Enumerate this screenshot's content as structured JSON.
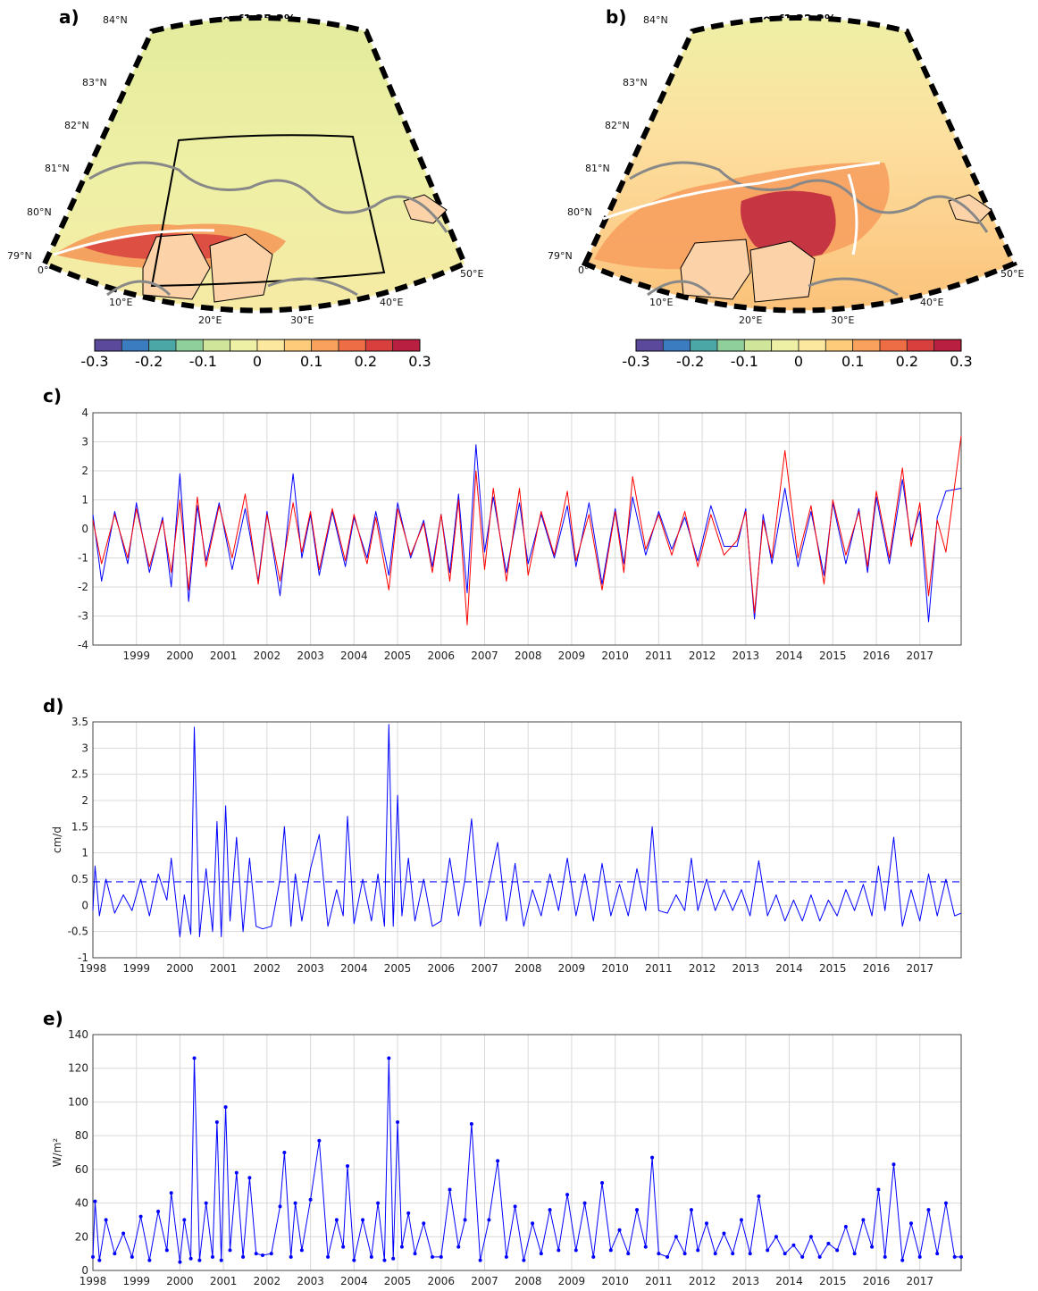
{
  "panel_a": {
    "label": "a)",
    "title": "eof1 35.2%",
    "lat_labels": [
      "79°N",
      "80°N",
      "81°N",
      "82°N",
      "83°N",
      "84°N"
    ],
    "lon_labels": [
      "0°",
      "10°E",
      "20°E",
      "30°E",
      "40°E",
      "50°E"
    ]
  },
  "panel_b": {
    "label": "b)",
    "title": "eof1 32.2%",
    "lat_labels": [
      "79°N",
      "80°N",
      "81°N",
      "82°N",
      "83°N",
      "84°N"
    ],
    "lon_labels": [
      "0°",
      "10°E",
      "20°E",
      "30°E",
      "40°E",
      "50°E"
    ]
  },
  "colorbar": {
    "ticks": [
      "-0.3",
      "-0.2",
      "-0.1",
      "0",
      "0.1",
      "0.2",
      "0.3"
    ],
    "colors": [
      "#5b4a9b",
      "#3a7cbf",
      "#4aa7a5",
      "#8fcf9b",
      "#cfe59a",
      "#eef0a6",
      "#fde8a0",
      "#fdcc7a",
      "#f9a25c",
      "#ee6d45",
      "#d8403e",
      "#b81f40"
    ]
  },
  "colors": {
    "blue": "#0000ff",
    "red": "#ff0000"
  },
  "years": [
    "1998",
    "1999",
    "2000",
    "2001",
    "2002",
    "2003",
    "2004",
    "2005",
    "2006",
    "2007",
    "2008",
    "2009",
    "2010",
    "2011",
    "2012",
    "2013",
    "2014",
    "2015",
    "2016",
    "2017"
  ],
  "chart_data": [
    {
      "id": "c",
      "label": "c)",
      "type": "line",
      "ylabel": "",
      "ylim": [
        -4,
        4
      ],
      "yticks": [
        -4,
        -3,
        -2,
        -1,
        0,
        1,
        2,
        3,
        4
      ],
      "xlim": [
        1998,
        2017.95
      ],
      "xtick_labels": [
        "1999",
        "2000",
        "2001",
        "2002",
        "2003",
        "2004",
        "2005",
        "2006",
        "2007",
        "2008",
        "2009",
        "2010",
        "2011",
        "2012",
        "2013",
        "2014",
        "2015",
        "2016",
        "2017"
      ],
      "grid": true,
      "series": [
        {
          "color": "#0000ff",
          "x": [
            1998.0,
            1998.2,
            1998.5,
            1998.8,
            1999.0,
            1999.3,
            1999.6,
            1999.8,
            2000.0,
            2000.2,
            2000.4,
            2000.6,
            2000.9,
            2001.2,
            2001.5,
            2001.8,
            2002.0,
            2002.3,
            2002.6,
            2002.8,
            2003.0,
            2003.2,
            2003.5,
            2003.8,
            2004.0,
            2004.3,
            2004.5,
            2004.8,
            2005.0,
            2005.3,
            2005.6,
            2005.8,
            2006.0,
            2006.2,
            2006.4,
            2006.6,
            2006.8,
            2007.0,
            2007.2,
            2007.5,
            2007.8,
            2008.0,
            2008.3,
            2008.6,
            2008.9,
            2009.1,
            2009.4,
            2009.7,
            2010.0,
            2010.2,
            2010.4,
            2010.7,
            2011.0,
            2011.3,
            2011.6,
            2011.9,
            2012.2,
            2012.5,
            2012.8,
            2013.0,
            2013.2,
            2013.4,
            2013.6,
            2013.9,
            2014.2,
            2014.5,
            2014.8,
            2015.0,
            2015.3,
            2015.6,
            2015.8,
            2016.0,
            2016.3,
            2016.6,
            2016.8,
            2017.0,
            2017.2,
            2017.4,
            2017.6,
            2017.95
          ],
          "y": [
            0.5,
            -1.8,
            0.6,
            -1.2,
            0.9,
            -1.5,
            0.4,
            -2.0,
            1.9,
            -2.5,
            0.8,
            -1.1,
            0.9,
            -1.4,
            0.7,
            -1.8,
            0.6,
            -2.3,
            1.9,
            -1.0,
            0.5,
            -1.6,
            0.6,
            -1.3,
            0.4,
            -1.0,
            0.6,
            -1.6,
            0.9,
            -1.0,
            0.3,
            -1.3,
            0.5,
            -1.5,
            1.2,
            -2.2,
            2.9,
            -0.8,
            1.1,
            -1.5,
            0.9,
            -1.2,
            0.5,
            -1.0,
            0.8,
            -1.3,
            0.9,
            -1.9,
            0.7,
            -1.2,
            1.1,
            -0.9,
            0.6,
            -0.7,
            0.4,
            -1.1,
            0.8,
            -0.6,
            -0.6,
            0.7,
            -3.1,
            0.5,
            -1.2,
            1.4,
            -1.3,
            0.6,
            -1.6,
            0.9,
            -1.2,
            0.7,
            -1.5,
            1.1,
            -1.2,
            1.7,
            -0.4,
            0.6,
            -3.2,
            0.4,
            1.3,
            1.4
          ]
        },
        {
          "color": "#ff0000",
          "x": [
            1998.0,
            1998.2,
            1998.5,
            1998.8,
            1999.0,
            1999.3,
            1999.6,
            1999.8,
            2000.0,
            2000.2,
            2000.4,
            2000.6,
            2000.9,
            2001.2,
            2001.5,
            2001.8,
            2002.0,
            2002.3,
            2002.6,
            2002.8,
            2003.0,
            2003.2,
            2003.5,
            2003.8,
            2004.0,
            2004.3,
            2004.5,
            2004.8,
            2005.0,
            2005.3,
            2005.6,
            2005.8,
            2006.0,
            2006.2,
            2006.4,
            2006.6,
            2006.8,
            2007.0,
            2007.2,
            2007.5,
            2007.8,
            2008.0,
            2008.3,
            2008.6,
            2008.9,
            2009.1,
            2009.4,
            2009.7,
            2010.0,
            2010.2,
            2010.4,
            2010.7,
            2011.0,
            2011.3,
            2011.6,
            2011.9,
            2012.2,
            2012.5,
            2012.8,
            2013.0,
            2013.2,
            2013.4,
            2013.6,
            2013.9,
            2014.2,
            2014.5,
            2014.8,
            2015.0,
            2015.3,
            2015.6,
            2015.8,
            2016.0,
            2016.3,
            2016.6,
            2016.8,
            2017.0,
            2017.2,
            2017.4,
            2017.6,
            2017.95
          ],
          "y": [
            0.3,
            -1.2,
            0.5,
            -1.0,
            0.7,
            -1.3,
            0.3,
            -1.5,
            1.0,
            -2.1,
            1.1,
            -1.3,
            0.8,
            -1.0,
            1.2,
            -1.9,
            0.5,
            -1.8,
            0.9,
            -0.8,
            0.6,
            -1.4,
            0.7,
            -1.1,
            0.5,
            -1.2,
            0.4,
            -2.1,
            0.7,
            -0.9,
            0.2,
            -1.5,
            0.5,
            -1.8,
            1.0,
            -3.3,
            2.0,
            -1.4,
            1.4,
            -1.8,
            1.4,
            -1.6,
            0.6,
            -0.9,
            1.3,
            -1.1,
            0.5,
            -2.1,
            0.6,
            -1.5,
            1.8,
            -0.7,
            0.5,
            -0.9,
            0.6,
            -1.3,
            0.5,
            -0.9,
            -0.4,
            0.6,
            -2.9,
            0.3,
            -1.0,
            2.7,
            -1.0,
            0.8,
            -1.9,
            1.0,
            -0.9,
            0.6,
            -1.3,
            1.3,
            -1.0,
            2.1,
            -0.6,
            0.9,
            -2.3,
            0.3,
            -0.8,
            3.2
          ]
        }
      ]
    },
    {
      "id": "d",
      "label": "d)",
      "type": "line",
      "ylabel": "cm/d",
      "ylim": [
        -1,
        3.5
      ],
      "yticks": [
        -1,
        -0.5,
        0,
        0.5,
        1,
        1.5,
        2,
        2.5,
        3,
        3.5
      ],
      "xlim": [
        1998,
        2017.95
      ],
      "xtick_labels": [
        "1998",
        "1999",
        "2000",
        "2001",
        "2002",
        "2003",
        "2004",
        "2005",
        "2006",
        "2007",
        "2008",
        "2009",
        "2010",
        "2011",
        "2012",
        "2013",
        "2014",
        "2015",
        "2016",
        "2017"
      ],
      "grid": true,
      "threshold": 0.45,
      "series": [
        {
          "color": "#0000ff",
          "x": [
            1998.0,
            1998.05,
            1998.15,
            1998.3,
            1998.5,
            1998.7,
            1998.9,
            1999.1,
            1999.3,
            1999.5,
            1999.7,
            1999.8,
            2000.0,
            2000.1,
            2000.25,
            2000.33,
            2000.45,
            2000.6,
            2000.75,
            2000.85,
            2000.95,
            2001.05,
            2001.15,
            2001.3,
            2001.45,
            2001.6,
            2001.75,
            2001.9,
            2002.1,
            2002.3,
            2002.4,
            2002.55,
            2002.65,
            2002.8,
            2003.0,
            2003.2,
            2003.4,
            2003.6,
            2003.75,
            2003.85,
            2004.0,
            2004.2,
            2004.4,
            2004.55,
            2004.7,
            2004.8,
            2004.9,
            2005.0,
            2005.1,
            2005.25,
            2005.4,
            2005.6,
            2005.8,
            2006.0,
            2006.2,
            2006.4,
            2006.55,
            2006.7,
            2006.9,
            2007.1,
            2007.3,
            2007.5,
            2007.7,
            2007.9,
            2008.1,
            2008.3,
            2008.5,
            2008.7,
            2008.9,
            2009.1,
            2009.3,
            2009.5,
            2009.7,
            2009.9,
            2010.1,
            2010.3,
            2010.5,
            2010.7,
            2010.85,
            2011.0,
            2011.2,
            2011.4,
            2011.6,
            2011.75,
            2011.9,
            2012.1,
            2012.3,
            2012.5,
            2012.7,
            2012.9,
            2013.1,
            2013.3,
            2013.5,
            2013.7,
            2013.9,
            2014.1,
            2014.3,
            2014.5,
            2014.7,
            2014.9,
            2015.1,
            2015.3,
            2015.5,
            2015.7,
            2015.9,
            2016.05,
            2016.2,
            2016.4,
            2016.6,
            2016.8,
            2017.0,
            2017.2,
            2017.4,
            2017.6,
            2017.8,
            2017.95
          ],
          "y": [
            -0.1,
            0.75,
            -0.2,
            0.5,
            -0.15,
            0.2,
            -0.1,
            0.5,
            -0.2,
            0.6,
            0.1,
            0.9,
            -0.6,
            0.2,
            -0.55,
            3.4,
            -0.6,
            0.7,
            -0.5,
            1.6,
            -0.6,
            1.9,
            -0.3,
            1.3,
            -0.5,
            0.9,
            -0.4,
            -0.45,
            -0.4,
            0.5,
            1.5,
            -0.4,
            0.6,
            -0.3,
            0.7,
            1.35,
            -0.4,
            0.3,
            -0.2,
            1.7,
            -0.35,
            0.5,
            -0.3,
            0.6,
            -0.4,
            3.45,
            -0.4,
            2.1,
            -0.2,
            0.9,
            -0.3,
            0.5,
            -0.4,
            -0.3,
            0.9,
            -0.2,
            0.5,
            1.65,
            -0.4,
            0.4,
            1.2,
            -0.3,
            0.8,
            -0.4,
            0.3,
            -0.2,
            0.6,
            -0.1,
            0.9,
            -0.2,
            0.6,
            -0.3,
            0.8,
            -0.2,
            0.4,
            -0.2,
            0.7,
            -0.1,
            1.5,
            -0.1,
            -0.15,
            0.2,
            -0.1,
            0.9,
            -0.1,
            0.5,
            -0.1,
            0.3,
            -0.1,
            0.3,
            -0.2,
            0.85,
            -0.2,
            0.2,
            -0.3,
            0.1,
            -0.3,
            0.2,
            -0.3,
            0.1,
            -0.2,
            0.3,
            -0.1,
            0.4,
            -0.2,
            0.75,
            -0.1,
            1.3,
            -0.4,
            0.3,
            -0.3,
            0.6,
            -0.2,
            0.5,
            -0.2,
            -0.15
          ]
        }
      ]
    },
    {
      "id": "e",
      "label": "e)",
      "type": "line",
      "ylabel": "W/m²",
      "ylim": [
        0,
        140
      ],
      "yticks": [
        0,
        20,
        40,
        60,
        80,
        100,
        120,
        140
      ],
      "xlim": [
        1998,
        2017.95
      ],
      "xtick_labels": [
        "1998",
        "1999",
        "2000",
        "2001",
        "2002",
        "2003",
        "2004",
        "2005",
        "2006",
        "2007",
        "2008",
        "2009",
        "2010",
        "2011",
        "2012",
        "2013",
        "2014",
        "2015",
        "2016",
        "2017"
      ],
      "grid": true,
      "series": [
        {
          "color": "#0000ff",
          "x": [
            1998.0,
            1998.05,
            1998.15,
            1998.3,
            1998.5,
            1998.7,
            1998.9,
            1999.1,
            1999.3,
            1999.5,
            1999.7,
            1999.8,
            2000.0,
            2000.1,
            2000.25,
            2000.33,
            2000.45,
            2000.6,
            2000.75,
            2000.85,
            2000.95,
            2001.05,
            2001.15,
            2001.3,
            2001.45,
            2001.6,
            2001.75,
            2001.9,
            2002.1,
            2002.3,
            2002.4,
            2002.55,
            2002.65,
            2002.8,
            2003.0,
            2003.2,
            2003.4,
            2003.6,
            2003.75,
            2003.85,
            2004.0,
            2004.2,
            2004.4,
            2004.55,
            2004.7,
            2004.8,
            2004.9,
            2005.0,
            2005.1,
            2005.25,
            2005.4,
            2005.6,
            2005.8,
            2006.0,
            2006.2,
            2006.4,
            2006.55,
            2006.7,
            2006.9,
            2007.1,
            2007.3,
            2007.5,
            2007.7,
            2007.9,
            2008.1,
            2008.3,
            2008.5,
            2008.7,
            2008.9,
            2009.1,
            2009.3,
            2009.5,
            2009.7,
            2009.9,
            2010.1,
            2010.3,
            2010.5,
            2010.7,
            2010.85,
            2011.0,
            2011.2,
            2011.4,
            2011.6,
            2011.75,
            2011.9,
            2012.1,
            2012.3,
            2012.5,
            2012.7,
            2012.9,
            2013.1,
            2013.3,
            2013.5,
            2013.7,
            2013.9,
            2014.1,
            2014.3,
            2014.5,
            2014.7,
            2014.9,
            2015.1,
            2015.3,
            2015.5,
            2015.7,
            2015.9,
            2016.05,
            2016.2,
            2016.4,
            2016.6,
            2016.8,
            2017.0,
            2017.2,
            2017.4,
            2017.6,
            2017.8,
            2017.95
          ],
          "y": [
            8,
            41,
            6,
            30,
            10,
            22,
            8,
            32,
            6,
            35,
            12,
            46,
            5,
            30,
            7,
            126,
            6,
            40,
            8,
            88,
            6,
            97,
            12,
            58,
            8,
            55,
            10,
            9,
            10,
            38,
            70,
            8,
            40,
            12,
            42,
            77,
            8,
            30,
            14,
            62,
            6,
            30,
            8,
            40,
            6,
            126,
            7,
            88,
            14,
            34,
            10,
            28,
            8,
            8,
            48,
            14,
            30,
            87,
            6,
            30,
            65,
            8,
            38,
            6,
            28,
            10,
            36,
            12,
            45,
            12,
            40,
            8,
            52,
            12,
            24,
            10,
            36,
            14,
            67,
            10,
            8,
            20,
            10,
            36,
            12,
            28,
            10,
            22,
            10,
            30,
            10,
            44,
            12,
            20,
            10,
            15,
            8,
            20,
            8,
            16,
            12,
            26,
            10,
            30,
            14,
            48,
            8,
            63,
            6,
            28,
            8,
            36,
            10,
            40,
            8,
            8
          ]
        }
      ]
    }
  ]
}
